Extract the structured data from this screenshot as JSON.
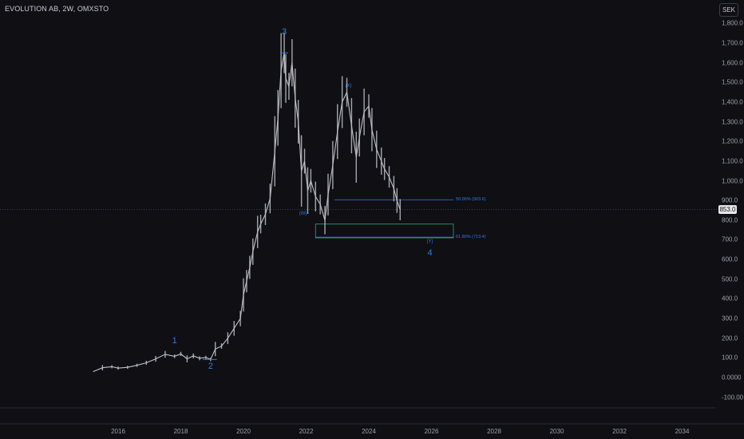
{
  "header": {
    "symbol_title": "EVOLUTION AB, 2W, OMXSTO",
    "currency": "SEK"
  },
  "price_axis": {
    "last_price_label": "853.0"
  },
  "chart_data": {
    "type": "line",
    "title": "EVOLUTION AB, 2W, OMXSTO",
    "xlabel": "",
    "ylabel": "",
    "xlim": [
      2013.4,
      2036.4
    ],
    "ylim": [
      -100,
      1800
    ],
    "grid": false,
    "y_ticks": [
      "1,800.0",
      "1,700.0",
      "1,600.0",
      "1,500.0",
      "1,400.0",
      "1,300.0",
      "1,200.0",
      "1,100.0",
      "1,000.0",
      "900.0",
      "800.0",
      "700.0",
      "600.0",
      "500.0",
      "400.0",
      "300.0",
      "200.0",
      "100.0",
      "0.0000",
      "-100.00"
    ],
    "y_tick_values": [
      1800,
      1700,
      1600,
      1500,
      1400,
      1300,
      1200,
      1100,
      1000,
      900,
      800,
      700,
      600,
      500,
      400,
      300,
      200,
      100,
      0,
      -100
    ],
    "x_ticks": [
      "2016",
      "2018",
      "2020",
      "2022",
      "2024",
      "2026",
      "2028",
      "2030",
      "2032",
      "2034"
    ],
    "x_tick_values": [
      2016,
      2018,
      2020,
      2022,
      2024,
      2026,
      2028,
      2030,
      2032,
      2034
    ],
    "series": [
      {
        "x": [
          2015.2,
          2015.5,
          2015.8,
          2016.0,
          2016.3,
          2016.6,
          2016.9,
          2017.2,
          2017.5,
          2017.8,
          2018.0,
          2018.2,
          2018.4,
          2018.6,
          2018.8,
          2018.95,
          2019.1,
          2019.3,
          2019.5,
          2019.7,
          2019.9,
          2020.0,
          2020.1,
          2020.2,
          2020.3,
          2020.45,
          2020.55,
          2020.7,
          2020.85,
          2021.0,
          2021.1,
          2021.2,
          2021.3,
          2021.35,
          2021.45,
          2021.55,
          2021.65,
          2021.75,
          2021.85,
          2021.95,
          2022.05,
          2022.15,
          2022.3,
          2022.45,
          2022.6,
          2022.7,
          2022.85,
          2023.0,
          2023.15,
          2023.3,
          2023.45,
          2023.6,
          2023.7,
          2023.85,
          2024.0,
          2024.1,
          2024.25,
          2024.4,
          2024.5,
          2024.65,
          2024.8,
          2024.9,
          2025.0
        ],
        "values": [
          30,
          50,
          55,
          48,
          52,
          62,
          75,
          95,
          118,
          108,
          120,
          95,
          110,
          98,
          102,
          92,
          145,
          160,
          200,
          250,
          300,
          420,
          490,
          560,
          640,
          740,
          780,
          830,
          910,
          1150,
          1320,
          1560,
          1650,
          1520,
          1480,
          1600,
          1420,
          1300,
          1050,
          1100,
          950,
          1000,
          920,
          880,
          800,
          930,
          1080,
          1250,
          1400,
          1450,
          1280,
          1120,
          1220,
          1350,
          1380,
          1260,
          1160,
          1100,
          1060,
          1020,
          960,
          900,
          853
        ]
      }
    ],
    "wave_labels": [
      {
        "text": "1",
        "x": 2017.8,
        "y": 185
      },
      {
        "text": "2",
        "x": 2018.95,
        "y": 55
      },
      {
        "text": "3",
        "x": 2021.3,
        "y": 1755
      },
      {
        "text": "(W)",
        "x": 2021.9,
        "y": 832
      },
      {
        "text": "(X)",
        "x": 2023.35,
        "y": 1480
      },
      {
        "text": "(Y)",
        "x": 2025.95,
        "y": 690
      },
      {
        "text": "4",
        "x": 2025.95,
        "y": 632
      }
    ],
    "fib_levels": [
      {
        "label": "50.00% (903.6)",
        "value": 903.6,
        "x_start": 2022.9,
        "x_end": 2026.7
      },
      {
        "label": "61.80% (713.4)",
        "value": 713.4,
        "x_start": 2022.3,
        "x_end": 2026.7
      }
    ],
    "target_zone": {
      "x_start": 2022.3,
      "x_end": 2026.7,
      "y_high": 780,
      "y_low": 710
    },
    "last_price": 853,
    "colors": {
      "background": "#0f0f14",
      "price": "#bfc2c9",
      "wave": "#2f7de1",
      "zone": "#2fa86c",
      "fib": "#2f7de1"
    }
  }
}
